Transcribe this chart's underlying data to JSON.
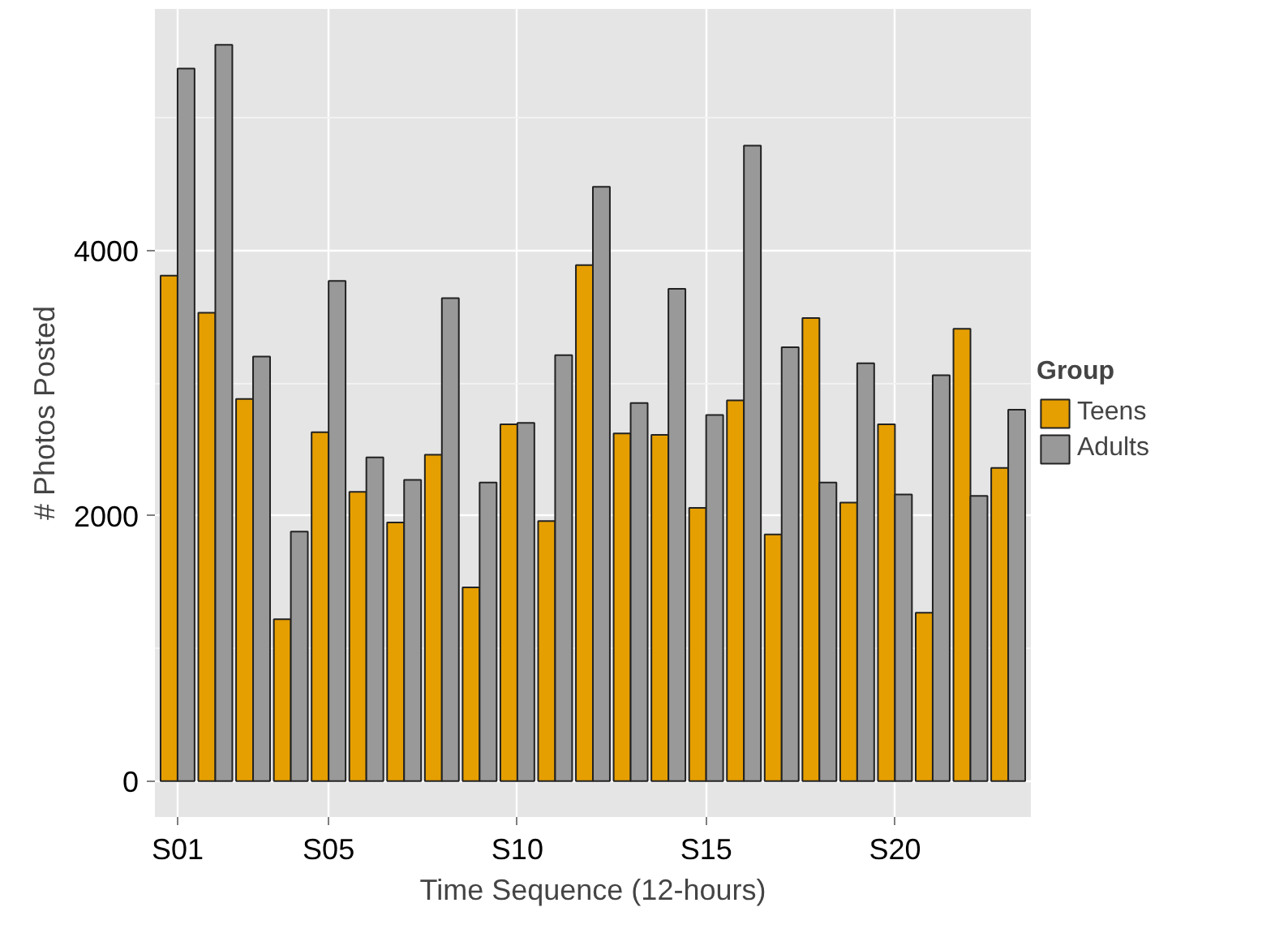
{
  "chart_data": {
    "type": "bar",
    "xlabel": "Time Sequence (12-hours)",
    "ylabel": "# Photos Posted",
    "legend_title": "Group",
    "categories": [
      "S01",
      null,
      null,
      null,
      "S05",
      null,
      null,
      null,
      null,
      "S10",
      null,
      null,
      null,
      null,
      "S15",
      null,
      null,
      null,
      null,
      "S20",
      null,
      null,
      null
    ],
    "series": [
      {
        "name": "Teens",
        "color": "#e69f00",
        "values": [
          3810,
          3530,
          2880,
          1220,
          2630,
          2180,
          1950,
          2460,
          1460,
          2690,
          1960,
          3890,
          2620,
          2610,
          2060,
          2870,
          1860,
          3490,
          2100,
          2690,
          1270,
          3410,
          2360
        ]
      },
      {
        "name": "Adults",
        "color": "#999999",
        "values": [
          5370,
          5550,
          3200,
          1880,
          3770,
          2440,
          2270,
          3640,
          2250,
          2700,
          3210,
          4480,
          2850,
          3710,
          2760,
          4790,
          3270,
          2250,
          3150,
          2160,
          3060,
          2150,
          2800
        ]
      }
    ],
    "ylim": [
      -270,
      5820
    ],
    "yticks": [
      0,
      2000,
      4000
    ],
    "grid": true,
    "legend": "right"
  }
}
